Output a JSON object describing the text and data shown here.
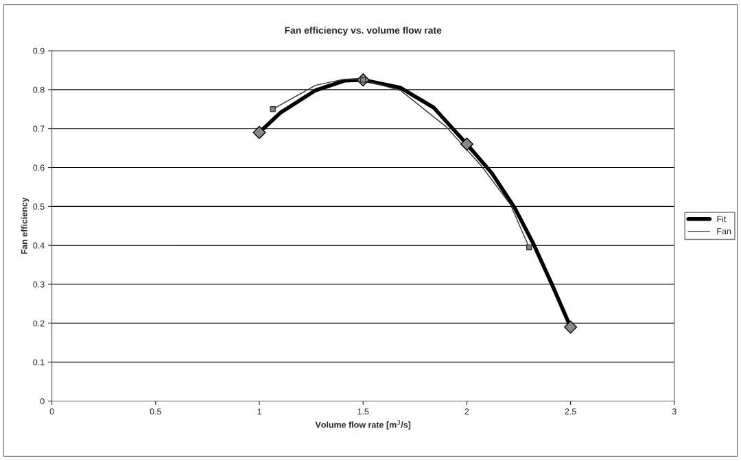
{
  "chart_data": {
    "type": "line",
    "title": "Fan efficiency vs. volume flow rate",
    "xlabel": "Volume flow rate [m$^{3}$/s]",
    "ylabel": "Fan efficiency",
    "series": [
      {
        "name": "Fit",
        "color": "#000000",
        "x": [
          1.0,
          1.1,
          1.27,
          1.41,
          1.5,
          1.68,
          1.84,
          2.0,
          2.12,
          2.23,
          2.32,
          2.41,
          2.5
        ],
        "values": [
          0.69,
          0.74,
          0.798,
          0.823,
          0.825,
          0.805,
          0.754,
          0.66,
          0.586,
          0.497,
          0.405,
          0.3,
          0.19
        ],
        "marker": "none"
      },
      {
        "name": "Fan",
        "color": "#333333",
        "x": [
          1.065,
          1.27,
          1.4,
          1.5,
          1.68,
          1.9,
          2.07,
          2.21,
          2.3
        ],
        "values": [
          0.75,
          0.811,
          0.826,
          0.825,
          0.798,
          0.705,
          0.604,
          0.505,
          0.395
        ],
        "marker": "none"
      },
      {
        "type": "scatter",
        "color": "#000000",
        "x": [
          1.0,
          1.5,
          2.0,
          2.5
        ],
        "values": [
          0.69,
          0.825,
          0.66,
          0.19
        ],
        "marker": "diamond"
      },
      {
        "type": "scatter",
        "color": "#333333",
        "x": [
          1.065,
          1.5,
          2.3
        ],
        "values": [
          0.75,
          0.825,
          0.395
        ],
        "marker": "square"
      }
    ],
    "xlim": [
      0,
      3
    ],
    "xticks": [
      0,
      0.5,
      1,
      1.5,
      2,
      2.5,
      3
    ],
    "ylim": [
      0,
      0.9
    ],
    "yticks": [
      0,
      0.1,
      0.2,
      0.3,
      0.4,
      0.5,
      0.6,
      0.7,
      0.8,
      0.9
    ],
    "grid": "y",
    "legend": "right",
    "line_style": "solid"
  }
}
